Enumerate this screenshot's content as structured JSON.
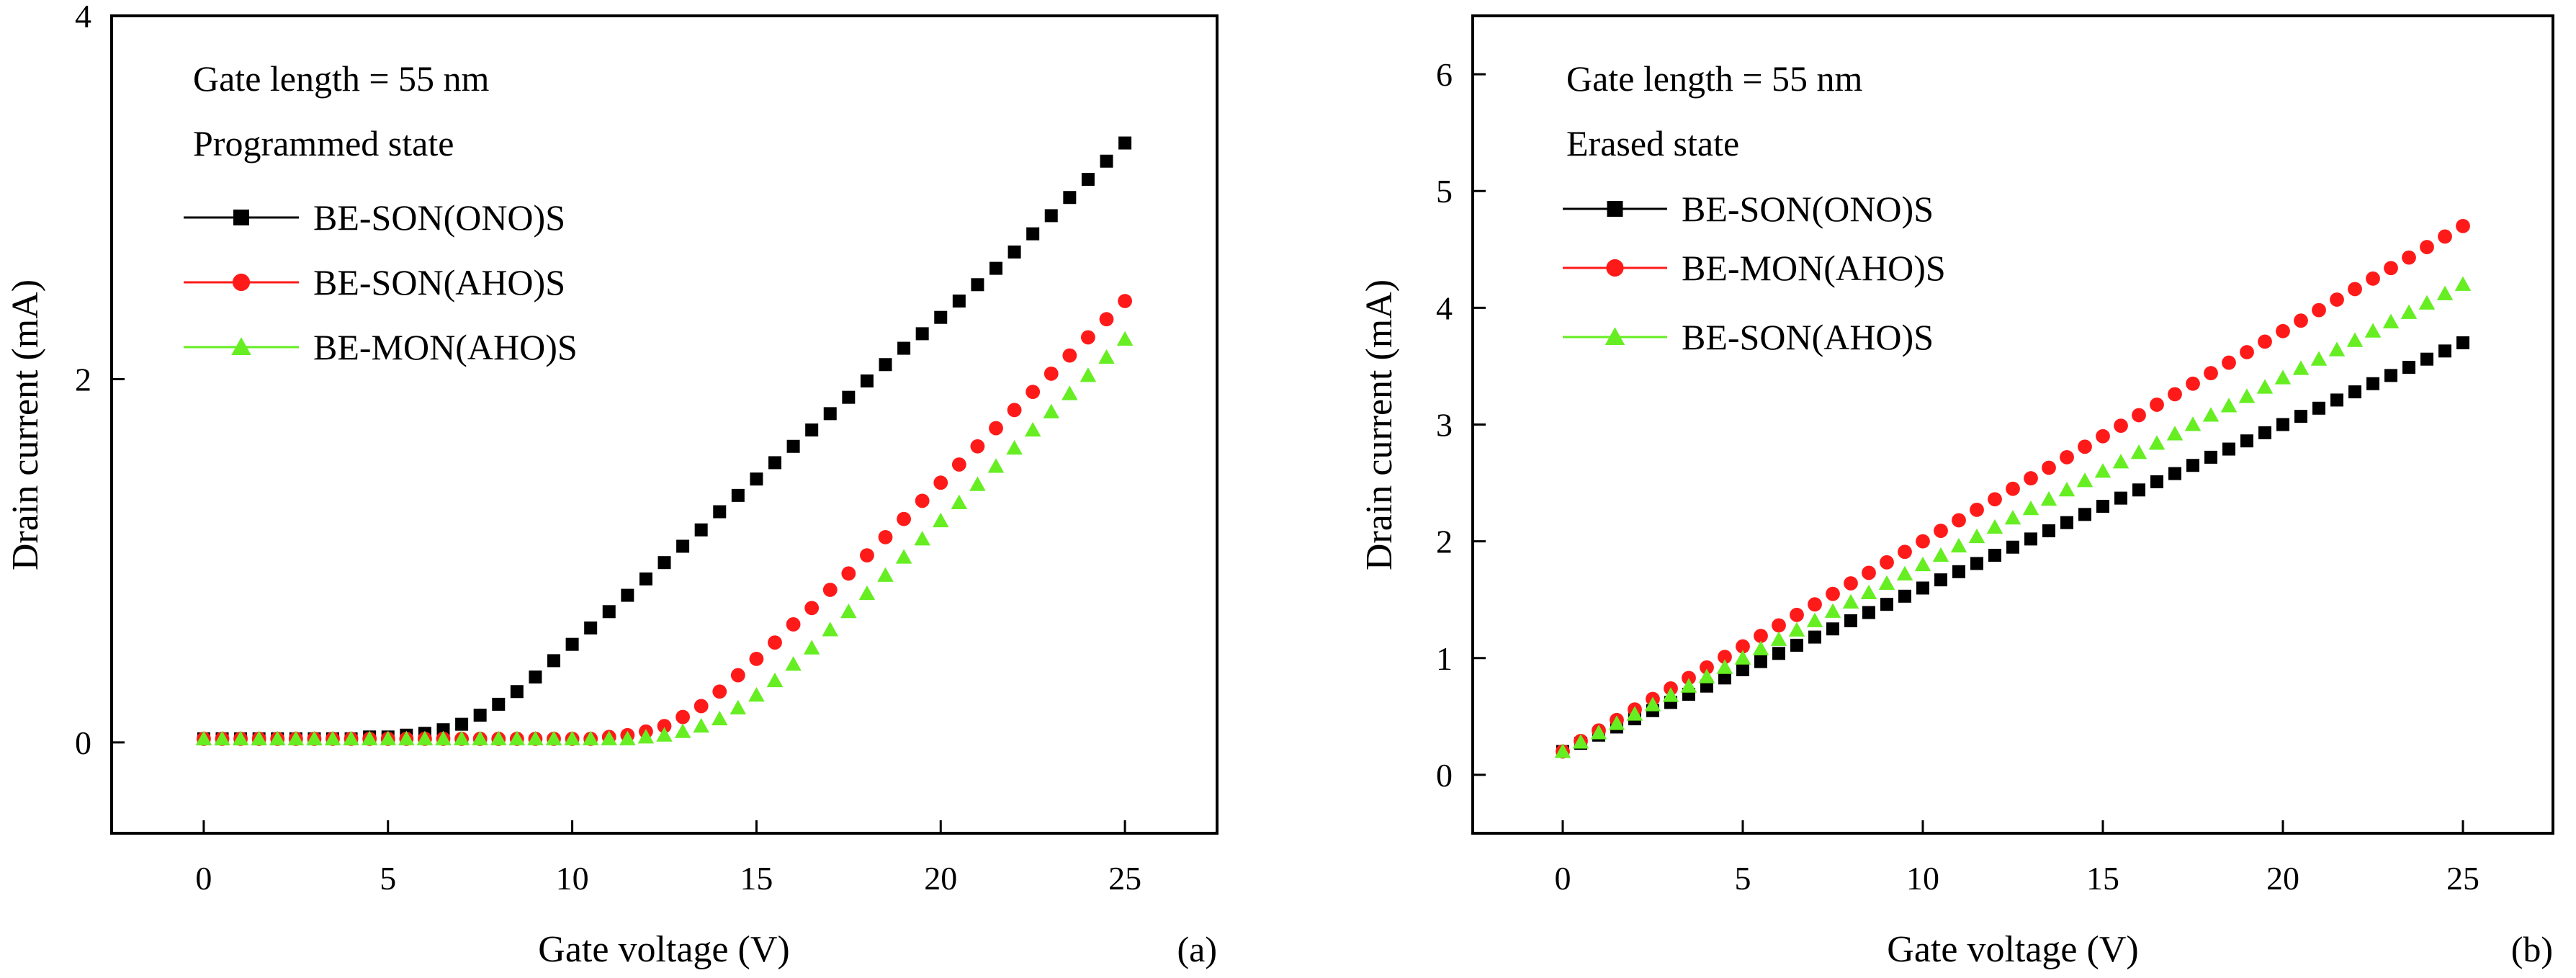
{
  "chart_data": [
    {
      "type": "scatter",
      "panel_label": "(a)",
      "annotations": [
        "Gate length = 55 nm",
        "Programmed state"
      ],
      "xlabel": "Gate voltage (V)",
      "ylabel": "Drain current (mA)",
      "xlim": [
        -2.5,
        27.5
      ],
      "ylim": [
        -0.5,
        4.0
      ],
      "xticks": [
        "0",
        "5",
        "10",
        "15",
        "20",
        "25"
      ],
      "yticks": [
        "0",
        "2",
        "4"
      ],
      "legend_position": "top-left",
      "grid": false,
      "x": [
        0,
        0.5,
        1,
        1.5,
        2,
        2.5,
        3,
        3.5,
        4,
        4.5,
        5,
        5.5,
        6,
        6.5,
        7,
        7.5,
        8,
        8.5,
        9,
        9.5,
        10,
        10.5,
        11,
        11.5,
        12,
        12.5,
        13,
        13.5,
        14,
        14.5,
        15,
        15.5,
        16,
        16.5,
        17,
        17.5,
        18,
        18.5,
        19,
        19.5,
        20,
        20.5,
        21,
        21.5,
        22,
        22.5,
        23,
        23.5,
        24,
        24.5,
        25
      ],
      "series": [
        {
          "name": "BE-SON(ONO)S",
          "marker": "square",
          "color": "#000000",
          "values": [
            0.02,
            0.02,
            0.02,
            0.02,
            0.02,
            0.02,
            0.02,
            0.02,
            0.02,
            0.03,
            0.03,
            0.04,
            0.05,
            0.07,
            0.1,
            0.15,
            0.21,
            0.28,
            0.36,
            0.45,
            0.54,
            0.63,
            0.72,
            0.81,
            0.9,
            0.99,
            1.08,
            1.17,
            1.27,
            1.36,
            1.45,
            1.54,
            1.63,
            1.72,
            1.81,
            1.9,
            1.99,
            2.08,
            2.17,
            2.25,
            2.34,
            2.43,
            2.52,
            2.61,
            2.7,
            2.8,
            2.9,
            3.0,
            3.1,
            3.2,
            3.3
          ]
        },
        {
          "name": "BE-SON(AHO)S",
          "marker": "circle",
          "color": "#ff1a1a",
          "values": [
            0.02,
            0.02,
            0.02,
            0.02,
            0.02,
            0.02,
            0.02,
            0.02,
            0.02,
            0.02,
            0.02,
            0.02,
            0.02,
            0.02,
            0.02,
            0.02,
            0.02,
            0.02,
            0.02,
            0.02,
            0.02,
            0.02,
            0.03,
            0.04,
            0.06,
            0.09,
            0.14,
            0.2,
            0.28,
            0.37,
            0.46,
            0.55,
            0.65,
            0.74,
            0.84,
            0.93,
            1.03,
            1.13,
            1.23,
            1.33,
            1.43,
            1.53,
            1.63,
            1.73,
            1.83,
            1.93,
            2.03,
            2.13,
            2.23,
            2.33,
            2.43
          ]
        },
        {
          "name": "BE-MON(AHO)S",
          "marker": "triangle",
          "color": "#66ee22",
          "values": [
            0.02,
            0.02,
            0.02,
            0.02,
            0.02,
            0.02,
            0.02,
            0.02,
            0.02,
            0.02,
            0.02,
            0.02,
            0.02,
            0.02,
            0.02,
            0.02,
            0.02,
            0.02,
            0.02,
            0.02,
            0.02,
            0.02,
            0.02,
            0.02,
            0.03,
            0.04,
            0.06,
            0.09,
            0.13,
            0.19,
            0.26,
            0.34,
            0.43,
            0.52,
            0.62,
            0.72,
            0.82,
            0.92,
            1.02,
            1.12,
            1.22,
            1.32,
            1.42,
            1.52,
            1.62,
            1.72,
            1.82,
            1.92,
            2.02,
            2.12,
            2.22
          ]
        }
      ]
    },
    {
      "type": "scatter",
      "panel_label": "(b)",
      "annotations": [
        "Gate length = 55 nm",
        "Erased state"
      ],
      "xlabel": "Gate voltage (V)",
      "ylabel": "Drain current (mA)",
      "xlim": [
        -2.5,
        27.5
      ],
      "ylim": [
        -0.5,
        6.5
      ],
      "xticks": [
        "0",
        "5",
        "10",
        "15",
        "20",
        "25"
      ],
      "yticks": [
        "0",
        "1",
        "2",
        "3",
        "4",
        "5",
        "6"
      ],
      "legend_position": "top-left",
      "grid": false,
      "x": [
        0,
        0.5,
        1,
        1.5,
        2,
        2.5,
        3,
        3.5,
        4,
        4.5,
        5,
        5.5,
        6,
        6.5,
        7,
        7.5,
        8,
        8.5,
        9,
        9.5,
        10,
        10.5,
        11,
        11.5,
        12,
        12.5,
        13,
        13.5,
        14,
        14.5,
        15,
        15.5,
        16,
        16.5,
        17,
        17.5,
        18,
        18.5,
        19,
        19.5,
        20,
        20.5,
        21,
        21.5,
        22,
        22.5,
        23,
        23.5,
        24,
        24.5,
        25
      ],
      "series": [
        {
          "name": "BE-SON(ONO)S",
          "marker": "square",
          "color": "#000000",
          "values": [
            0.2,
            0.27,
            0.34,
            0.41,
            0.48,
            0.55,
            0.62,
            0.69,
            0.76,
            0.83,
            0.9,
            0.97,
            1.04,
            1.11,
            1.18,
            1.25,
            1.32,
            1.39,
            1.46,
            1.53,
            1.6,
            1.67,
            1.74,
            1.81,
            1.88,
            1.95,
            2.02,
            2.09,
            2.16,
            2.23,
            2.3,
            2.37,
            2.44,
            2.51,
            2.58,
            2.65,
            2.72,
            2.79,
            2.86,
            2.93,
            3.0,
            3.07,
            3.14,
            3.21,
            3.28,
            3.35,
            3.42,
            3.49,
            3.56,
            3.63,
            3.7
          ]
        },
        {
          "name": "BE-MON(AHO)S",
          "marker": "circle",
          "color": "#ff1a1a",
          "values": [
            0.2,
            0.29,
            0.38,
            0.47,
            0.56,
            0.65,
            0.74,
            0.83,
            0.92,
            1.01,
            1.1,
            1.19,
            1.28,
            1.37,
            1.46,
            1.55,
            1.64,
            1.73,
            1.82,
            1.91,
            2.0,
            2.09,
            2.18,
            2.27,
            2.36,
            2.45,
            2.54,
            2.63,
            2.72,
            2.81,
            2.9,
            2.99,
            3.08,
            3.17,
            3.26,
            3.35,
            3.44,
            3.53,
            3.62,
            3.71,
            3.8,
            3.89,
            3.98,
            4.07,
            4.16,
            4.25,
            4.34,
            4.43,
            4.52,
            4.61,
            4.7
          ]
        },
        {
          "name": "BE-SON(AHO)S",
          "marker": "triangle",
          "color": "#66ee22",
          "values": [
            0.2,
            0.28,
            0.36,
            0.44,
            0.52,
            0.6,
            0.68,
            0.76,
            0.84,
            0.92,
            1.0,
            1.08,
            1.16,
            1.24,
            1.32,
            1.4,
            1.48,
            1.56,
            1.64,
            1.72,
            1.8,
            1.88,
            1.96,
            2.04,
            2.12,
            2.2,
            2.28,
            2.36,
            2.44,
            2.52,
            2.6,
            2.68,
            2.76,
            2.84,
            2.92,
            3.0,
            3.08,
            3.16,
            3.24,
            3.32,
            3.4,
            3.48,
            3.56,
            3.64,
            3.72,
            3.8,
            3.88,
            3.96,
            4.04,
            4.12,
            4.2
          ]
        }
      ]
    }
  ]
}
